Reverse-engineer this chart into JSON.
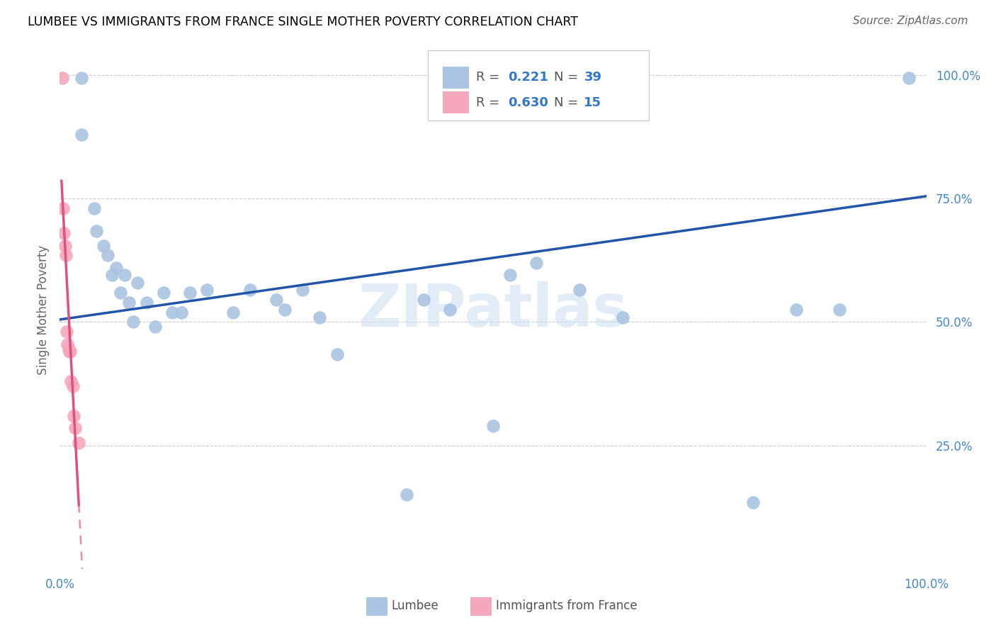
{
  "title": "LUMBEE VS IMMIGRANTS FROM FRANCE SINGLE MOTHER POVERTY CORRELATION CHART",
  "source": "Source: ZipAtlas.com",
  "ylabel": "Single Mother Poverty",
  "legend_lumbee": "Lumbee",
  "legend_france": "Immigrants from France",
  "R_lumbee": 0.221,
  "N_lumbee": 39,
  "R_france": 0.63,
  "N_france": 15,
  "lumbee_color": "#aac4e2",
  "france_color": "#f5a8bc",
  "lumbee_line_color": "#2255aa",
  "france_line_color": "#e0507a",
  "lumbee_x": [
    0.025,
    0.025,
    0.04,
    0.042,
    0.05,
    0.055,
    0.06,
    0.065,
    0.07,
    0.075,
    0.08,
    0.085,
    0.09,
    0.1,
    0.11,
    0.12,
    0.13,
    0.14,
    0.15,
    0.17,
    0.2,
    0.22,
    0.25,
    0.26,
    0.28,
    0.3,
    0.32,
    0.4,
    0.42,
    0.45,
    0.5,
    0.52,
    0.55,
    0.6,
    0.65,
    0.8,
    0.85,
    0.9,
    0.98
  ],
  "lumbee_y": [
    0.995,
    0.88,
    0.73,
    0.685,
    0.655,
    0.635,
    0.595,
    0.61,
    0.56,
    0.595,
    0.54,
    0.5,
    0.58,
    0.54,
    0.49,
    0.56,
    0.52,
    0.52,
    0.56,
    0.565,
    0.52,
    0.565,
    0.545,
    0.525,
    0.565,
    0.51,
    0.435,
    0.15,
    0.545,
    0.525,
    0.29,
    0.595,
    0.62,
    0.565,
    0.51,
    0.135,
    0.525,
    0.525,
    0.995
  ],
  "france_x": [
    0.003,
    0.004,
    0.005,
    0.006,
    0.007,
    0.008,
    0.009,
    0.01,
    0.011,
    0.012,
    0.013,
    0.015,
    0.016,
    0.018,
    0.022
  ],
  "france_y": [
    0.995,
    0.73,
    0.68,
    0.655,
    0.635,
    0.48,
    0.455,
    0.445,
    0.44,
    0.44,
    0.38,
    0.37,
    0.31,
    0.285,
    0.255
  ],
  "xlim": [
    0.0,
    1.0
  ],
  "ylim": [
    0.0,
    1.05
  ],
  "yticks": [
    0.25,
    0.5,
    0.75,
    1.0
  ],
  "ytick_labels": [
    "25.0%",
    "50.0%",
    "75.0%",
    "100.0%"
  ],
  "xtick_left_label": "0.0%",
  "xtick_right_label": "100.0%"
}
